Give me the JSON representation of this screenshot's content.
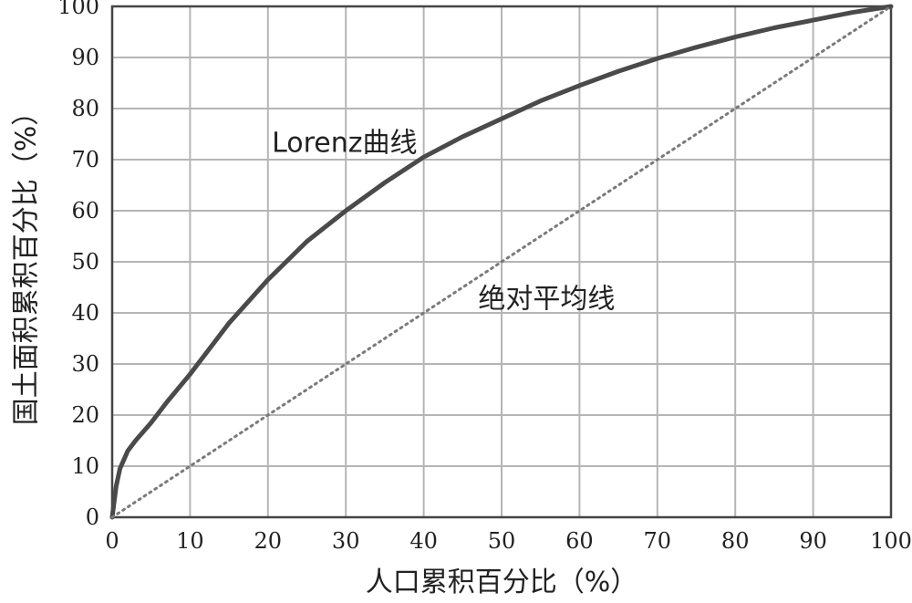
{
  "chart_data": {
    "type": "line",
    "title": "",
    "xlabel": "人口累积百分比（%）",
    "ylabel": "国土面积累积百分比（%）",
    "xlim": [
      0,
      100
    ],
    "ylim": [
      0,
      100
    ],
    "x_ticks": [
      "0",
      "10",
      "20",
      "30",
      "40",
      "50",
      "60",
      "70",
      "80",
      "90",
      "100"
    ],
    "y_ticks": [
      "0",
      "10",
      "20",
      "30",
      "40",
      "50",
      "60",
      "70",
      "80",
      "90",
      "100"
    ],
    "grid": true,
    "series": [
      {
        "name": "Lorenz曲线",
        "style": "solid",
        "color": "#4a4a4a",
        "points": [
          [
            0,
            0
          ],
          [
            0.5,
            6
          ],
          [
            1,
            9.5
          ],
          [
            2,
            13
          ],
          [
            3,
            15
          ],
          [
            5,
            18.5
          ],
          [
            7,
            22.5
          ],
          [
            10,
            28
          ],
          [
            15,
            38
          ],
          [
            20,
            46.5
          ],
          [
            25,
            54
          ],
          [
            30,
            60
          ],
          [
            35,
            65.5
          ],
          [
            40,
            70.5
          ],
          [
            45,
            74.5
          ],
          [
            50,
            78
          ],
          [
            55,
            81.5
          ],
          [
            60,
            84.5
          ],
          [
            65,
            87.3
          ],
          [
            70,
            89.8
          ],
          [
            75,
            92
          ],
          [
            80,
            94
          ],
          [
            85,
            95.8
          ],
          [
            90,
            97.3
          ],
          [
            95,
            98.8
          ],
          [
            100,
            100
          ]
        ]
      },
      {
        "name": "绝对平均线",
        "style": "dotted",
        "color": "#7a7a7a",
        "points": [
          [
            0,
            0
          ],
          [
            100,
            100
          ]
        ]
      }
    ],
    "annotations": [
      {
        "text": "Lorenz曲线",
        "series": 0
      },
      {
        "text": "绝对平均线",
        "series": 1
      }
    ]
  }
}
